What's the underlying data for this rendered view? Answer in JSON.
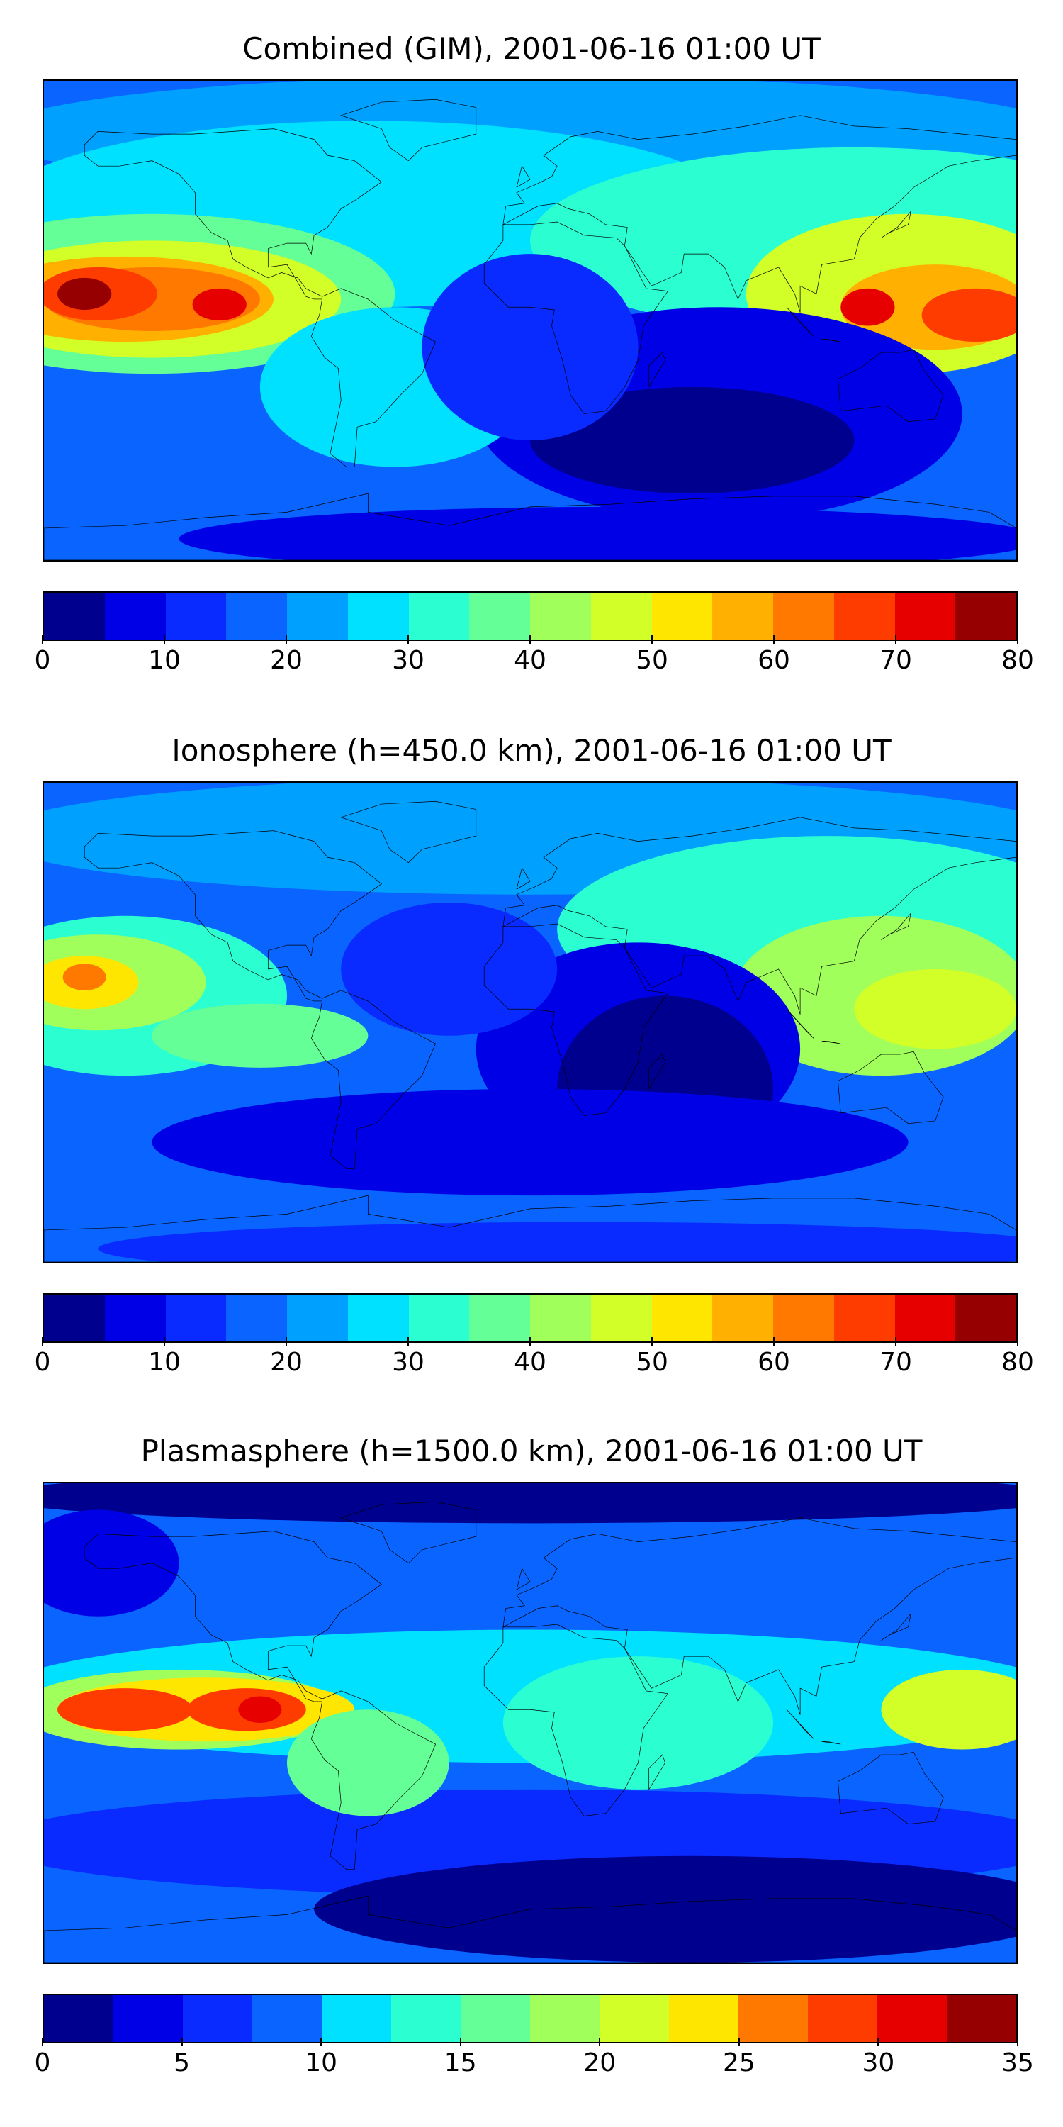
{
  "chart_data": [
    {
      "type": "heatmap",
      "title": "Combined (GIM), 2001-06-16 01:00 UT",
      "colorbar": {
        "min": 0,
        "max": 80,
        "step": 5,
        "ticks": [
          0,
          10,
          20,
          30,
          40,
          50,
          60,
          70,
          80
        ]
      },
      "features": [
        {
          "region": "equatorial eastern Pacific (west of Central America)",
          "level": 77.5
        },
        {
          "region": "eastern Pacific secondary peak",
          "level": 72.5
        },
        {
          "region": "western Pacific / south-east Asia",
          "level": 67.5
        },
        {
          "region": "south-east Asia peak",
          "level": 72.5
        },
        {
          "region": "Indian Ocean and Southern Ocean",
          "level": 7.5
        },
        {
          "region": "Antarctic coast",
          "level": 7.5
        },
        {
          "region": "North Atlantic / Europe",
          "level": 22.5
        }
      ]
    },
    {
      "type": "heatmap",
      "title": "Ionosphere  (h=450.0 km), 2001-06-16 01:00 UT",
      "colorbar": {
        "min": 0,
        "max": 80,
        "step": 5,
        "ticks": [
          0,
          10,
          20,
          30,
          40,
          50,
          60,
          70,
          80
        ]
      },
      "features": [
        {
          "region": "equatorial eastern Pacific",
          "level": 62.5
        },
        {
          "region": "western Pacific / south-east Asia",
          "level": 47.5
        },
        {
          "region": "Indian Ocean and Africa east",
          "level": 2.5
        },
        {
          "region": "South Atlantic / Southern Ocean",
          "level": 7.5
        },
        {
          "region": "North Atlantic",
          "level": 17.5
        }
      ]
    },
    {
      "type": "heatmap",
      "title": "Plasmasphere (h=1500.0 km), 2001-06-16 01:00 UT",
      "colorbar": {
        "min": 0,
        "max": 35,
        "step": 2.5,
        "ticks": [
          0,
          5,
          10,
          15,
          20,
          25,
          30,
          35
        ]
      },
      "features": [
        {
          "region": "equatorial eastern Pacific (two peaks)",
          "level": 28.75
        },
        {
          "region": "Pacific peak near 110W",
          "level": 31.25
        },
        {
          "region": "south-east Asia",
          "level": 21.25
        },
        {
          "region": "northern high latitudes",
          "level": 1.25
        },
        {
          "region": "Antarctic",
          "level": 1.25
        },
        {
          "region": "equatorial Atlantic / Africa",
          "level": 11.25
        }
      ]
    }
  ],
  "jet_colors": [
    "#00008f",
    "#0000e6",
    "#0a2bff",
    "#0a64ff",
    "#00a0ff",
    "#00e0ff",
    "#2bffd2",
    "#64ff96",
    "#a0ff5a",
    "#d2ff28",
    "#ffe600",
    "#ffb000",
    "#ff7800",
    "#ff3c00",
    "#e60000",
    "#960000"
  ]
}
